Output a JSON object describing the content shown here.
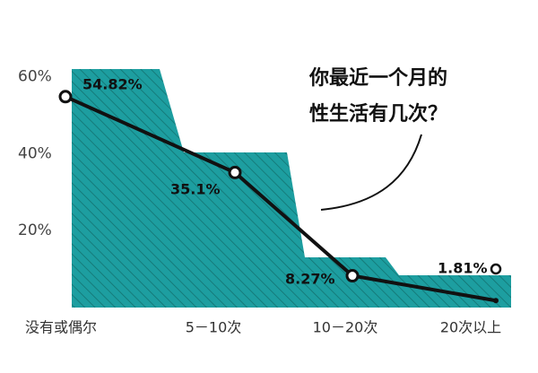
{
  "chart_data": {
    "type": "line",
    "title": [
      "你最近一个月的",
      "性生活有几次？"
    ],
    "categories": [
      "没有或偶尔",
      "5－10次",
      "10－20次",
      "20次以上"
    ],
    "series": [
      {
        "name": null,
        "color": "#111111",
        "values": [
          54.82,
          35.1,
          8.27,
          1.81
        ],
        "value_labels": [
          "54.82%",
          "35.1%",
          "8.27%",
          "1.81%"
        ]
      }
    ],
    "ylim": [
      0,
      62
    ],
    "yticks": [
      {
        "value": 20,
        "label": "20%"
      },
      {
        "value": 40,
        "label": "40%"
      },
      {
        "value": 60,
        "label": "60%"
      }
    ],
    "area_color": "#1d9ea0"
  }
}
